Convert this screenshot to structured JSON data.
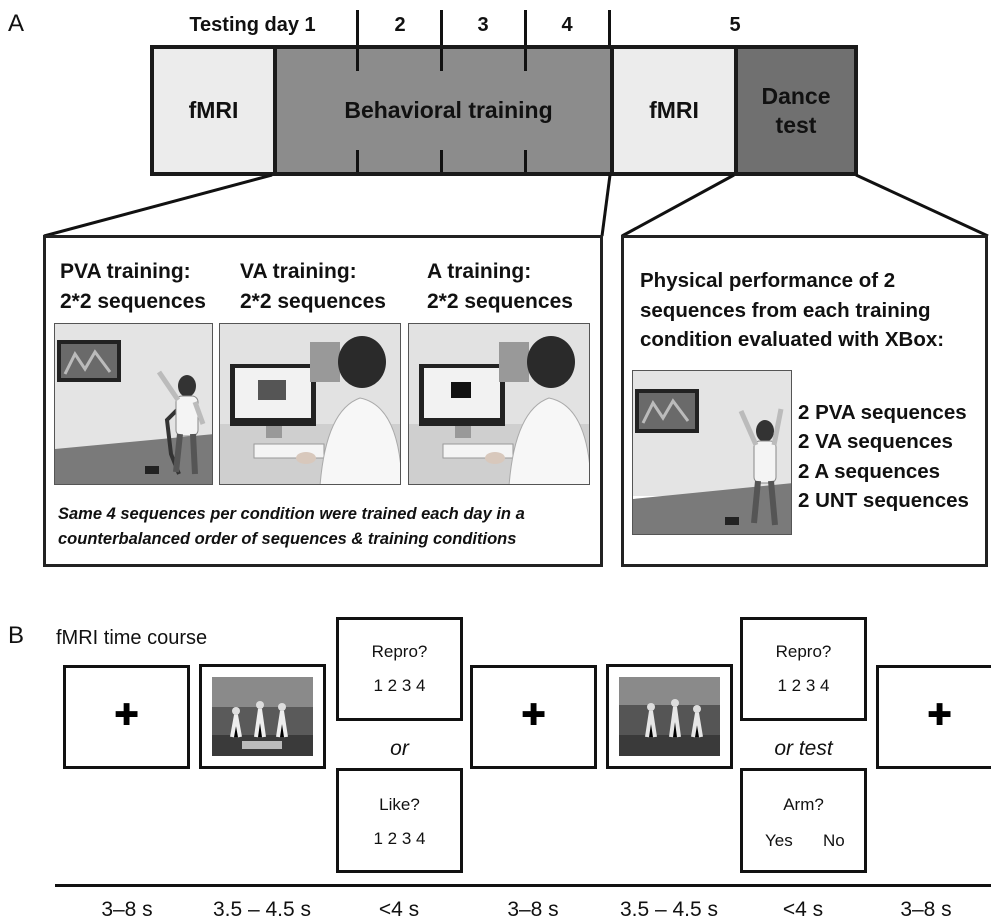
{
  "panel_a": {
    "letter": "A",
    "days": [
      "Testing day 1",
      "2",
      "3",
      "4",
      "5"
    ],
    "segments": {
      "fmri_pre": "fMRI",
      "behavioral": "Behavioral training",
      "fmri_post": "fMRI",
      "dance": "Dance test"
    },
    "colors": {
      "fmri": "#ececec",
      "behavioral": "#8c8c8c",
      "dance": "#707070"
    },
    "training_box": {
      "columns": [
        {
          "title": "PVA training:",
          "subtitle": "2*2 sequences"
        },
        {
          "title": "VA training:",
          "subtitle": "2*2 sequences"
        },
        {
          "title": "A training:",
          "subtitle": "2*2 sequences"
        }
      ],
      "note_line1": "Same 4 sequences per condition were trained each day in a",
      "note_line2": "counterbalanced order of sequences & training conditions"
    },
    "test_box": {
      "title_line1": "Physical performance  of 2",
      "title_line2": "sequences from each training",
      "title_line3": "condition evaluated with XBox:",
      "items": [
        "2 PVA sequences",
        "2 VA sequences",
        "2 A sequences",
        "2 UNT sequences"
      ]
    }
  },
  "panel_b": {
    "letter": "B",
    "title": "fMRI time course",
    "repro": {
      "question": "Repro?",
      "scale": "1 2 3 4"
    },
    "like": {
      "question": "Like?",
      "scale": "1 2 3 4"
    },
    "arm": {
      "question": "Arm?",
      "yes": "Yes",
      "no": "No"
    },
    "or_1": "or",
    "or_2": "or test",
    "fixation": "✚",
    "timeline": [
      "3–8 s",
      "3.5 – 4.5 s",
      "<4 s",
      "3–8 s",
      "3.5 – 4.5 s",
      "<4 s",
      "3–8 s"
    ]
  }
}
